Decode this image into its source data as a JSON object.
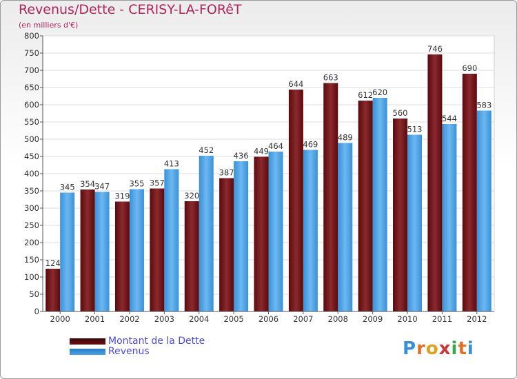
{
  "title": "Revenus/Dette - CERISY-LA-FORêT",
  "subtitle": "(en milliers d'€)",
  "logo": {
    "letters": [
      {
        "ch": "P",
        "color": "#3a8fd6"
      },
      {
        "ch": "r",
        "color": "#e0702a"
      },
      {
        "ch": "o",
        "color": "#e0a020"
      },
      {
        "ch": "x",
        "color": "#c83a3a"
      },
      {
        "ch": "i",
        "color": "#3aa84a"
      },
      {
        "ch": "t",
        "color": "#e0702a"
      },
      {
        "ch": "i",
        "color": "#3a8fd6"
      }
    ]
  },
  "chart_data": {
    "type": "bar",
    "categories": [
      "2000",
      "2001",
      "2002",
      "2003",
      "2004",
      "2005",
      "2006",
      "2007",
      "2008",
      "2009",
      "2010",
      "2011",
      "2012"
    ],
    "series": [
      {
        "name": "Montant de la Dette",
        "color": "#6b0f12",
        "values": [
          124,
          354,
          319,
          357,
          320,
          387,
          449,
          644,
          663,
          612,
          560,
          746,
          690
        ]
      },
      {
        "name": "Revenus",
        "color": "#4aa3e6",
        "values": [
          345,
          347,
          355,
          413,
          452,
          436,
          464,
          469,
          489,
          620,
          513,
          544,
          583
        ]
      }
    ],
    "ylim": [
      0,
      800
    ],
    "yticks": [
      0,
      50,
      100,
      150,
      200,
      250,
      300,
      350,
      400,
      450,
      500,
      550,
      600,
      650,
      700,
      750,
      800
    ],
    "grid": true,
    "legend_position": "bottom-left"
  }
}
